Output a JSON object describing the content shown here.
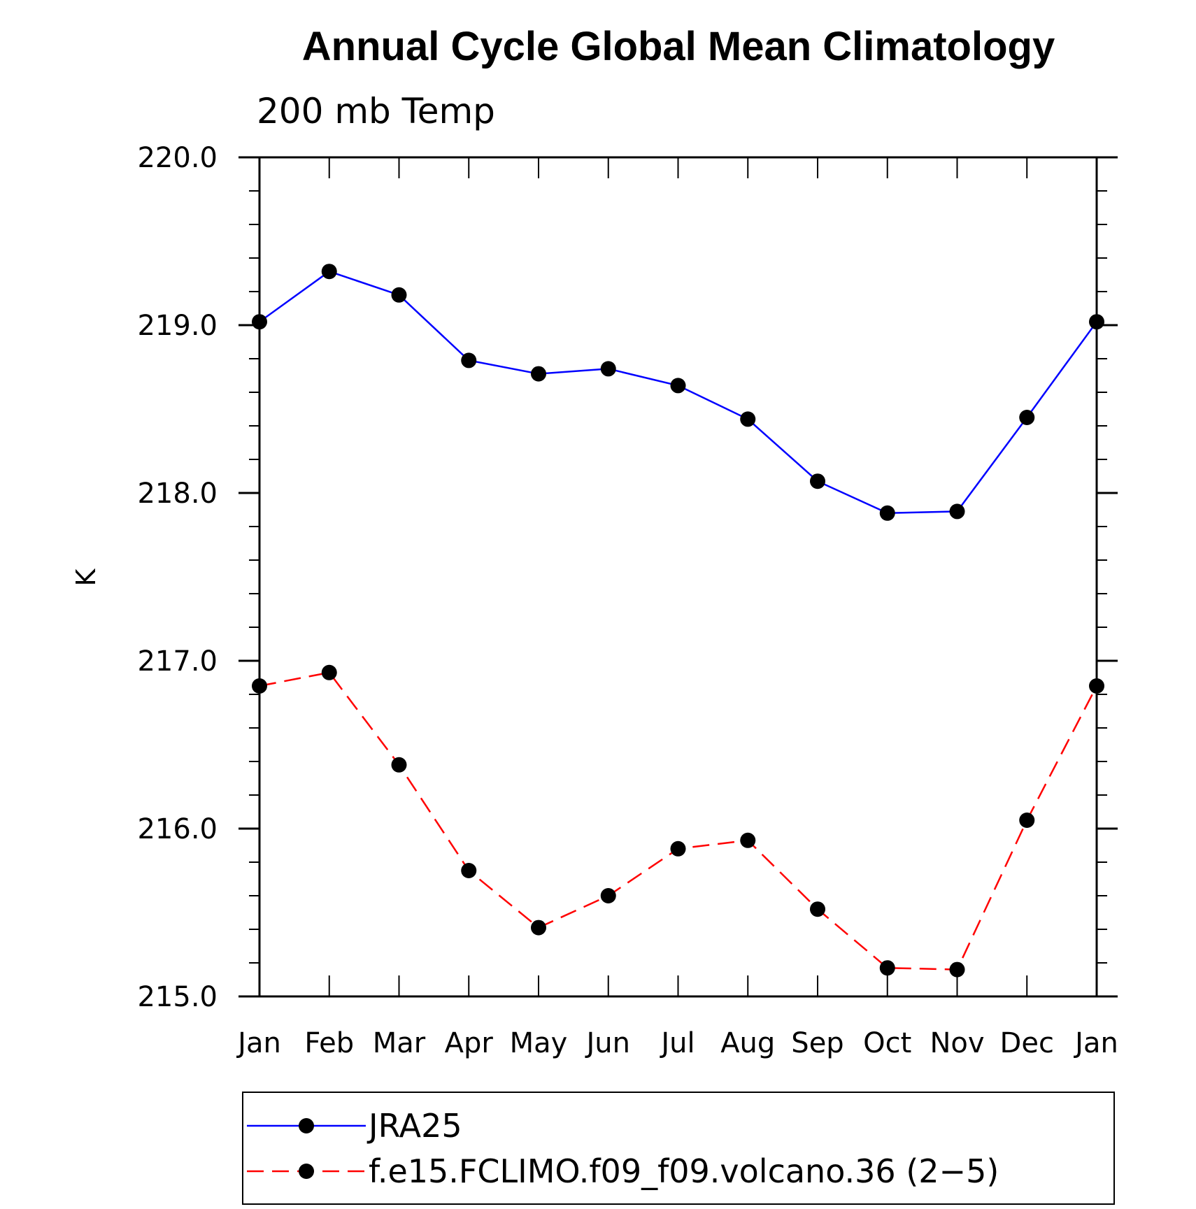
{
  "chart_data": {
    "type": "line",
    "title": "Annual Cycle Global Mean Climatology",
    "subtitle": "200 mb Temp",
    "xlabel": "",
    "ylabel": "K",
    "categories": [
      "Jan",
      "Feb",
      "Mar",
      "Apr",
      "May",
      "Jun",
      "Jul",
      "Aug",
      "Sep",
      "Oct",
      "Nov",
      "Dec",
      "Jan"
    ],
    "ylim": [
      215.0,
      220.0
    ],
    "yticks": [
      "215.0",
      "216.0",
      "217.0",
      "218.0",
      "219.0",
      "220.0"
    ],
    "grid": false,
    "legend_position": "bottom",
    "series": [
      {
        "name": "JRA25",
        "color": "#0000ff",
        "line_style": "solid",
        "marker": "filled-circle",
        "values": [
          219.02,
          219.32,
          219.18,
          218.79,
          218.71,
          218.74,
          218.64,
          218.44,
          218.07,
          217.88,
          217.89,
          218.45,
          219.02
        ]
      },
      {
        "name": "f.e15.FCLIMO.f09_f09.volcano.36 (2−5)",
        "color": "#ff0000",
        "line_style": "dashed",
        "marker": "filled-circle",
        "values": [
          216.85,
          216.93,
          216.38,
          215.75,
          215.41,
          215.6,
          215.88,
          215.93,
          215.52,
          215.17,
          215.16,
          216.05,
          216.85
        ]
      }
    ]
  }
}
